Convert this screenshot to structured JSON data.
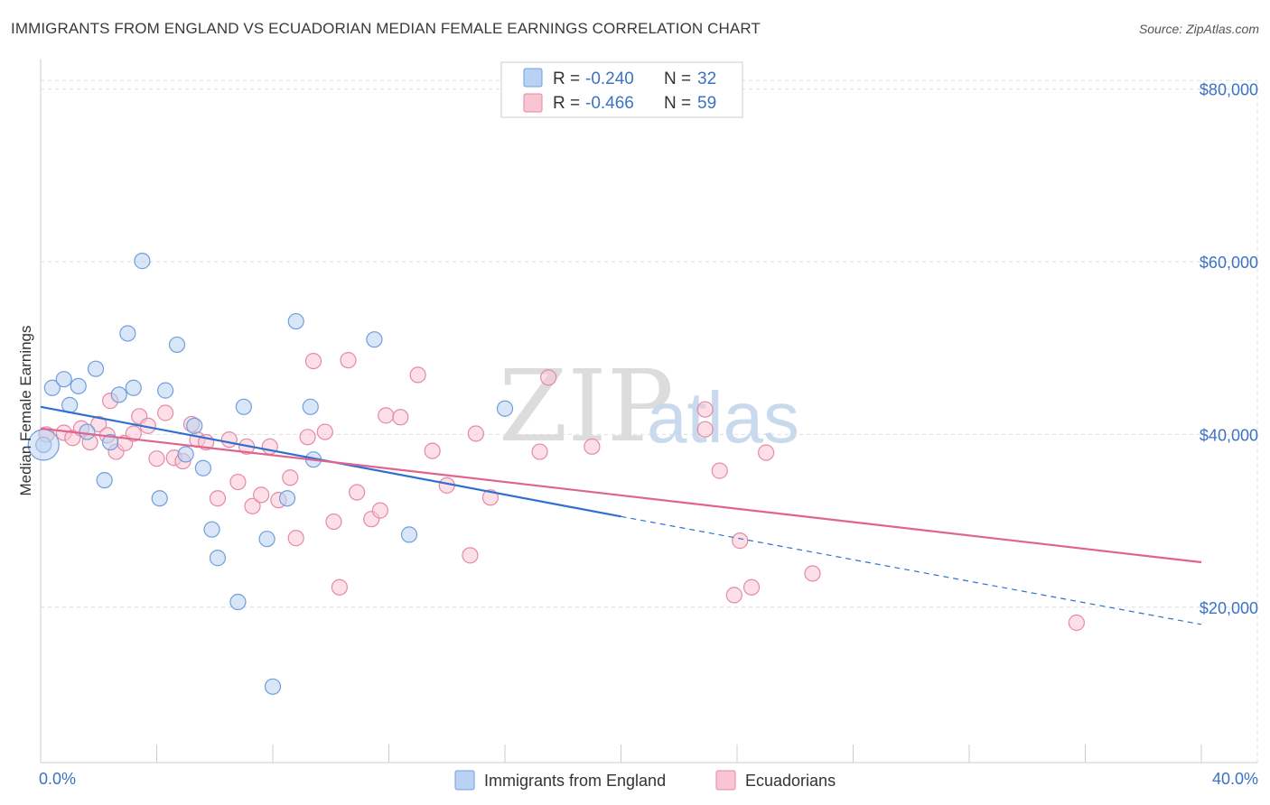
{
  "title": "IMMIGRANTS FROM ENGLAND VS ECUADORIAN MEDIAN FEMALE EARNINGS CORRELATION CHART",
  "source": "Source: ZipAtlas.com",
  "watermark": {
    "zip": "ZIP",
    "atlas": "atlas"
  },
  "colors": {
    "blue_fill": "#b9d2f3",
    "blue_stroke": "#6f9fdc",
    "blue_line": "#2f6fd0",
    "pink_fill": "#f9c5d3",
    "pink_stroke": "#e48aa5",
    "pink_line": "#e0648d",
    "grid": "#dddddd",
    "axis_text": "#3b72c4"
  },
  "chart_data": {
    "type": "scatter",
    "title": "IMMIGRANTS FROM ENGLAND VS ECUADORIAN MEDIAN FEMALE EARNINGS CORRELATION CHART",
    "xlabel": "",
    "ylabel": "Median Female Earnings",
    "xlim": [
      0,
      40
    ],
    "ylim": [
      2000,
      83000
    ],
    "x_tick_labels": [
      "0.0%",
      "40.0%"
    ],
    "y_ticks": [
      20000,
      40000,
      60000,
      80000
    ],
    "y_tick_labels": [
      "$20,000",
      "$40,000",
      "$60,000",
      "$80,000"
    ],
    "grid": true,
    "legend_position": "top-center",
    "legend": [
      {
        "r_label": "R =",
        "r_value": "-0.240",
        "n_label": "N =",
        "n_value": "32"
      },
      {
        "r_label": "R =",
        "r_value": "-0.466",
        "n_label": "N =",
        "n_value": "59"
      }
    ],
    "series": [
      {
        "name": "Immigrants from England",
        "color": "#b9d2f3",
        "trend": {
          "x0": 0,
          "y0": 43200,
          "x1": 20,
          "y1": 30500,
          "dashed_to_x": 40,
          "dashed_to_y": 18000
        },
        "points": [
          [
            0.1,
            38800
          ],
          [
            0.4,
            45400
          ],
          [
            0.8,
            46400
          ],
          [
            1.0,
            43400
          ],
          [
            1.3,
            45600
          ],
          [
            1.6,
            40300
          ],
          [
            1.9,
            47600
          ],
          [
            2.2,
            34700
          ],
          [
            2.4,
            39100
          ],
          [
            2.7,
            44600
          ],
          [
            3.0,
            51700
          ],
          [
            3.2,
            45400
          ],
          [
            3.5,
            60100
          ],
          [
            4.1,
            32600
          ],
          [
            4.3,
            45100
          ],
          [
            4.7,
            50400
          ],
          [
            5.0,
            37700
          ],
          [
            5.3,
            41000
          ],
          [
            5.6,
            36100
          ],
          [
            5.9,
            29000
          ],
          [
            6.1,
            25700
          ],
          [
            6.8,
            20600
          ],
          [
            7.0,
            43200
          ],
          [
            7.8,
            27900
          ],
          [
            8.0,
            10800
          ],
          [
            8.5,
            32600
          ],
          [
            8.8,
            53100
          ],
          [
            9.3,
            43200
          ],
          [
            9.4,
            37100
          ],
          [
            11.5,
            51000
          ],
          [
            12.7,
            28400
          ],
          [
            16.0,
            43000
          ]
        ]
      },
      {
        "name": "Ecuadorians",
        "color": "#f9c5d3",
        "trend": {
          "x0": 0,
          "y0": 40700,
          "x1": 40,
          "y1": 25200
        },
        "points": [
          [
            0.2,
            40000
          ],
          [
            0.8,
            40200
          ],
          [
            1.1,
            39600
          ],
          [
            1.4,
            40700
          ],
          [
            1.7,
            39100
          ],
          [
            2.0,
            41200
          ],
          [
            2.3,
            39900
          ],
          [
            2.4,
            43900
          ],
          [
            2.6,
            38000
          ],
          [
            2.9,
            39000
          ],
          [
            3.2,
            40100
          ],
          [
            3.4,
            42100
          ],
          [
            3.7,
            41000
          ],
          [
            4.0,
            37200
          ],
          [
            4.3,
            42500
          ],
          [
            4.6,
            37300
          ],
          [
            4.9,
            36900
          ],
          [
            5.2,
            41200
          ],
          [
            5.4,
            39400
          ],
          [
            5.7,
            39100
          ],
          [
            6.1,
            32600
          ],
          [
            6.5,
            39400
          ],
          [
            6.8,
            34500
          ],
          [
            7.1,
            38600
          ],
          [
            7.3,
            31700
          ],
          [
            7.6,
            33000
          ],
          [
            7.9,
            38600
          ],
          [
            8.2,
            32400
          ],
          [
            8.6,
            35000
          ],
          [
            8.8,
            28000
          ],
          [
            9.2,
            39700
          ],
          [
            9.4,
            48500
          ],
          [
            9.8,
            40300
          ],
          [
            10.1,
            29900
          ],
          [
            10.3,
            22300
          ],
          [
            10.6,
            48600
          ],
          [
            10.9,
            33300
          ],
          [
            11.4,
            30200
          ],
          [
            11.7,
            31200
          ],
          [
            11.9,
            42200
          ],
          [
            12.4,
            42000
          ],
          [
            13.0,
            46900
          ],
          [
            13.5,
            38100
          ],
          [
            14.0,
            34100
          ],
          [
            14.8,
            26000
          ],
          [
            15.0,
            40100
          ],
          [
            15.5,
            32700
          ],
          [
            17.2,
            38000
          ],
          [
            17.5,
            46600
          ],
          [
            19.0,
            38600
          ],
          [
            22.9,
            42900
          ],
          [
            22.9,
            40600
          ],
          [
            23.4,
            35800
          ],
          [
            23.9,
            21400
          ],
          [
            24.1,
            27700
          ],
          [
            24.5,
            22300
          ],
          [
            25.0,
            37900
          ],
          [
            26.6,
            23900
          ],
          [
            35.7,
            18200
          ]
        ]
      }
    ]
  },
  "bottom_legend": [
    "Immigrants from England",
    "Ecuadorians"
  ]
}
